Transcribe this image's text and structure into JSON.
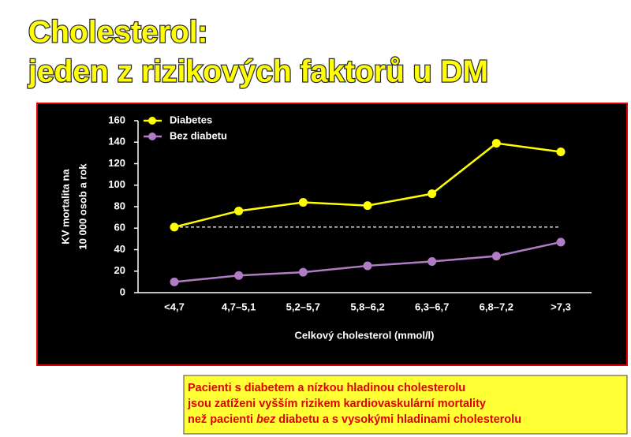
{
  "slide": {
    "title_lines": [
      "Cholesterol:",
      "jeden z rizikových faktorů u DM"
    ],
    "note": {
      "lines": [
        [
          "Pacienti s diabetem a nízkou hladinou cholesterolu"
        ],
        [
          "jsou zatíženi vyšším rizikem kardiovaskulární mortality"
        ],
        [
          "než pacienti ",
          "bez",
          " diabetu a s vysokými hladinami cholesterolu"
        ]
      ]
    }
  },
  "chart_data": {
    "type": "line",
    "y_label_lines": [
      "KV mortalita na",
      "10 000 osob a rok"
    ],
    "x_label": "Celkový cholesterol (mmol/l)",
    "categories": [
      "<4,7",
      "4,7–5,1",
      "5,2–5,7",
      "5,8–6,2",
      "6,3–6,7",
      "6,8–7,2",
      ">7,3"
    ],
    "series": [
      {
        "name": "Diabetes",
        "color": "#ffff00",
        "values": [
          61,
          76,
          84,
          81,
          92,
          139,
          131
        ]
      },
      {
        "name": "Bez diabetu",
        "color": "#b07cc6",
        "values": [
          10,
          16,
          19,
          25,
          29,
          34,
          47
        ]
      }
    ],
    "reference_line": {
      "y": 61,
      "style": "dashed",
      "color": "#ffffff"
    },
    "ylim": [
      0,
      160
    ],
    "yticks": [
      0,
      20,
      40,
      60,
      80,
      100,
      120,
      140,
      160
    ],
    "legend": "top-left"
  }
}
